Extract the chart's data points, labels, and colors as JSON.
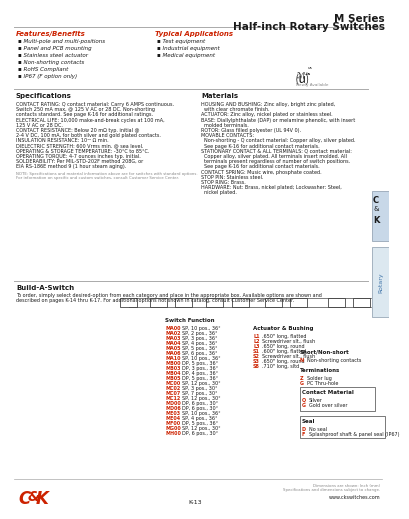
{
  "title_line1": "M Series",
  "title_line2": "Half-inch Rotary Switches",
  "red_color": "#cc2200",
  "dark_color": "#1a1a1a",
  "gray_color": "#888888",
  "light_blue": "#c8d8e8",
  "mid_blue": "#7a9ab8",
  "features_title": "Features/Benefits",
  "features_items": [
    "Multi-pole and multi-positions",
    "Panel and PCB mounting",
    "Stainless steel actuator",
    "Non-shorting contacts",
    "RoHS Compliant",
    "IP67 (F option only)"
  ],
  "applications_title": "Typical Applications",
  "applications_items": [
    "Test equipment",
    "Industrial equipment",
    "Medical equipment"
  ],
  "spec_title": "Specifications",
  "spec_texts": [
    "CONTACT RATING: Q contact material: Carry 6 AMPS continuous.",
    "Switch 250 mA max, @ 125 V AC or 28 DC. Non-shorting",
    "contacts standard. See page K-16 for additional ratings.",
    "ELECTRICAL LIFE: 10,000 make-and-break cycles at 100 mA,",
    "125 V AC or 28 DC.",
    "CONTACT RESISTANCE: Below 20 mΩ typ. initial @",
    "2-4 V DC, 100 mA, for both silver and gold plated contacts.",
    "INSULATION RESISTANCE: 10¹⁰ Ω min.",
    "DIELECTRIC STRENGTH: 600 Vrms min. @ sea level.",
    "OPERATING & STORAGE TEMPERATURE: -30°C to 85°C.",
    "OPERATING TORQUE: 4-7 ounces inches typ. initial.",
    "SOLDERABILITY: Per MIL-STD-202F method 208G, or",
    "EIA RS-186E method 9 (1 hour steam aging)."
  ],
  "spec_note1": "NOTE: Specifications and material information above are for switches with standard options.",
  "spec_note2": "For information on specific and custom switches, consult Customer Service Center.",
  "materials_title": "Materials",
  "materials_texts": [
    "HOUSING AND BUSHING: Zinc alloy, bright zinc plated,",
    "  with clear chromate finish.",
    "ACTUATOR: Zinc alloy, nickel plated or stainless steel.",
    "BASE: Diallylphthalate (DAP) or melamine phenolic, with insert",
    "  molded terminals.",
    "ROTOR: Glass filled polyester (UL 94V 0).",
    "MOVABLE CONTACTS:",
    "  Non-shorting - Q contact material: Copper alloy, silver plated.",
    "  See page K-16 for additional contact materials.",
    "STATIONARY CONTACT & ALL TERMINALS: Q contact material:",
    "  Copper alloy, silver plated. All terminals insert molded. All",
    "  terminals present regardless of number of switch positions.",
    "  See page K-16 for additional contact materials.",
    "CONTACT SPRING: Music wire, phosphate coated.",
    "STOP PIN: Stainless steel.",
    "STOP RING: Brass.",
    "HARDWARE: Nut: Brass, nickel plated; Lockwasher: Steel,",
    "  nickel plated."
  ],
  "build_title": "Build-A-Switch",
  "build_desc1": "To order, simply select desired-option from each category and place in the appropriate box. Available options are shown and",
  "build_desc2": "described on pages K-14 thru K-17. For additional options not shown in catalog, consult Customer Service Center.",
  "switch_functions": [
    [
      "MA00",
      "SP, 10 pos., 36°"
    ],
    [
      "MA02",
      "SP, 2 pos., 36°"
    ],
    [
      "MA03",
      "SP, 3 pos., 36°"
    ],
    [
      "MA04",
      "SP, 4 pos., 36°"
    ],
    [
      "MA05",
      "SP, 5 pos., 36°"
    ],
    [
      "MA06",
      "SP, 6 pos., 36°"
    ],
    [
      "MA10",
      "SP, 10 pos., 36°"
    ],
    [
      "MB00",
      "DP, 5 pos., 36°"
    ],
    [
      "MB03",
      "DP, 3 pos., 36°"
    ],
    [
      "MB04",
      "DP, 4 pos., 36°"
    ],
    [
      "MB05",
      "DP, 5 pos., 36°"
    ],
    [
      "MC00",
      "SP, 12 pos., 30°"
    ],
    [
      "MC02",
      "SP, 3 pos., 30°"
    ],
    [
      "MC07",
      "SP, 7 pos., 30°"
    ],
    [
      "MC12",
      "SP, 12 pos., 30°"
    ],
    [
      "MD00",
      "DP, 6 pos., 30°"
    ],
    [
      "MD06",
      "DP, 6 pos., 30°"
    ],
    [
      "ME03",
      "SP, 10 pos., 36°"
    ],
    [
      "ME04",
      "SP, 4 pos., 36°"
    ],
    [
      "MF00",
      "DP, 5 pos., 36°"
    ],
    [
      "MG00",
      "SP, 12 pos., 30°"
    ],
    [
      "MH00",
      "DP, 6 pos., 30°"
    ]
  ],
  "actuator_items": [
    [
      "L1",
      ".650\" long, flatted"
    ],
    [
      "L2",
      "Screwdriver slt., flush"
    ],
    [
      "L3",
      ".650\" long, round"
    ],
    [
      "S1",
      ".600\" long, flatted"
    ],
    [
      "S2",
      "Screwdriver slt., flush"
    ],
    [
      "S3",
      ".650\" long, round"
    ],
    [
      "S8",
      ".710\" long, sltd"
    ]
  ],
  "shortnon_items": [
    [
      "N",
      "Non-shorting contacts"
    ]
  ],
  "termination_items": [
    [
      "Z",
      "Solder lug"
    ],
    [
      "G",
      "PC Thru-hole"
    ]
  ],
  "contact_items": [
    [
      "Q",
      "Silver"
    ],
    [
      "G",
      "Gold over silver"
    ]
  ],
  "seal_items": [
    [
      "D",
      "No seal"
    ],
    [
      "F",
      "Splashproof shaft & panel seal (IP67)"
    ]
  ],
  "page_num": "K-13",
  "website": "www.ckswitches.com",
  "footer_note1": "Dimensions are shown: Inch (mm)",
  "footer_note2": "Specifications and dimensions subject to change."
}
